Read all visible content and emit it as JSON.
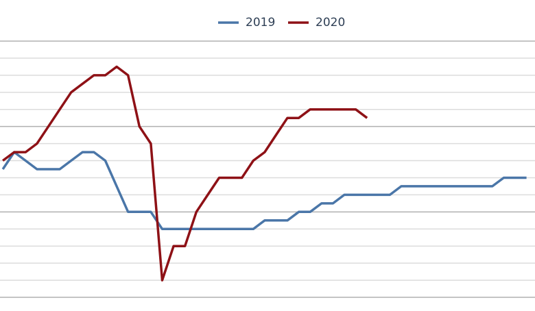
{
  "chart_data": {
    "type": "line",
    "x": [
      0,
      1,
      2,
      3,
      4,
      5,
      6,
      7,
      8,
      9,
      10,
      11,
      12,
      13,
      14,
      15,
      16,
      17,
      18,
      19,
      20,
      21,
      22,
      23,
      24,
      25,
      26,
      27,
      28,
      29,
      30,
      31,
      32,
      33,
      34,
      35,
      36,
      37,
      38,
      39,
      40,
      41,
      42,
      43,
      44,
      45,
      46
    ],
    "series": [
      {
        "name": "2019",
        "color": "#4a76a8",
        "values": [
          7.5,
          8.5,
          8,
          7.5,
          7.5,
          7.5,
          8,
          8.5,
          8.5,
          8,
          6.5,
          5,
          5,
          5,
          4,
          4,
          4,
          4,
          4,
          4,
          4,
          4,
          4,
          4.5,
          4.5,
          4.5,
          5,
          5,
          5.5,
          5.5,
          6,
          6,
          6,
          6,
          6,
          6.5,
          6.5,
          6.5,
          6.5,
          6.5,
          6.5,
          6.5,
          6.5,
          6.5,
          7,
          7,
          7
        ]
      },
      {
        "name": "2020",
        "color": "#8e1116",
        "values": [
          8,
          8.5,
          8.5,
          9,
          10,
          11,
          12,
          12.5,
          13,
          13,
          13.5,
          13,
          10,
          9,
          1,
          3,
          3,
          5,
          6,
          7,
          7,
          7,
          8,
          8.5,
          9.5,
          10.5,
          10.5,
          11,
          11,
          11,
          11,
          11,
          10.5,
          null,
          null,
          null,
          null,
          null,
          null,
          null,
          null,
          null,
          null,
          null,
          null,
          null,
          null
        ]
      }
    ],
    "xlim": [
      -0.25,
      46.75
    ],
    "ylim": [
      0,
      15
    ],
    "yticks": [
      0,
      1,
      2,
      3,
      4,
      5,
      6,
      7,
      8,
      9,
      10,
      11,
      12,
      13,
      14,
      15
    ],
    "grid": true
  }
}
